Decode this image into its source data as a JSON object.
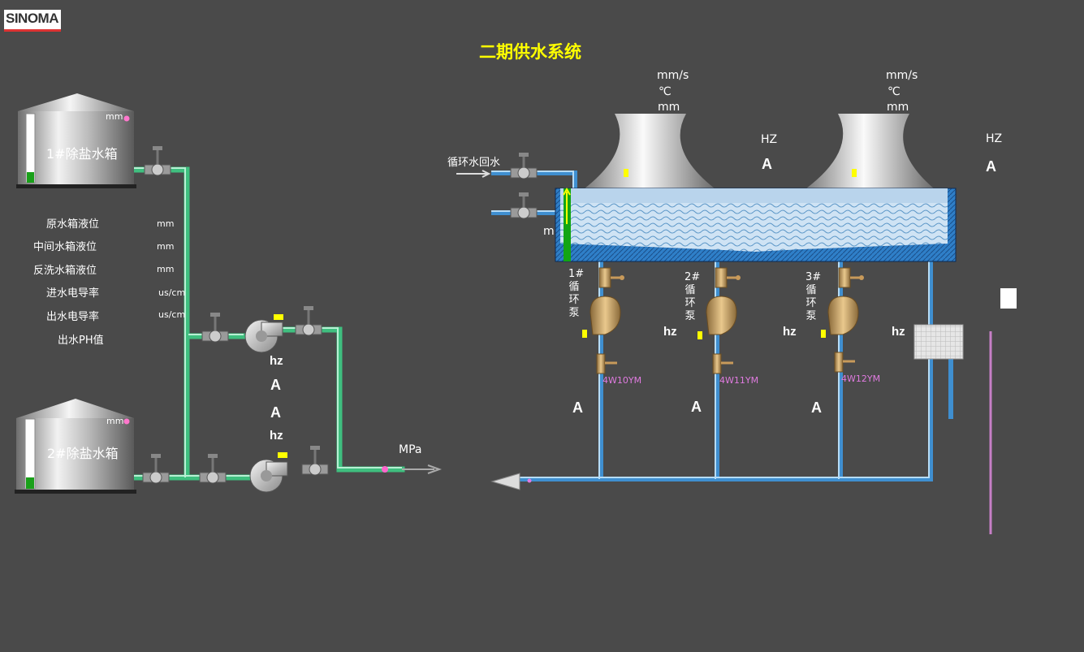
{
  "header": {
    "logo": "SINOMA",
    "title": "二期供水系统"
  },
  "tanks": [
    {
      "name": "1#除盐水箱",
      "level_unit": "mm"
    },
    {
      "name": "2#除盐水箱",
      "level_unit": "mm"
    }
  ],
  "readings": [
    {
      "label": "原水箱液位",
      "unit": "mm"
    },
    {
      "label": "中间水箱液位",
      "unit": "mm"
    },
    {
      "label": "反洗水箱液位",
      "unit": "mm"
    },
    {
      "label": "进水电导率",
      "unit": "us/cm"
    },
    {
      "label": "出水电导率",
      "unit": "us/cm"
    },
    {
      "label": "出水PH值",
      "unit": ""
    }
  ],
  "supply_pumps": {
    "upper": {
      "freq_unit": "hz",
      "current_unit": "A"
    },
    "lower": {
      "freq_unit": "hz",
      "current_unit": "A"
    },
    "outlet_pressure_unit": "MPa"
  },
  "cooling_towers": [
    {
      "vibration_unit": "mm/s",
      "temp_unit": "℃",
      "level_unit": "mm",
      "freq_unit": "HZ",
      "current_unit": "A"
    },
    {
      "vibration_unit": "mm/s",
      "temp_unit": "℃",
      "level_unit": "mm",
      "freq_unit": "HZ",
      "current_unit": "A"
    }
  ],
  "return_water_label": "循环水回水",
  "basin_level_unit": "m",
  "circ_pumps": [
    {
      "name": "1#循环泵",
      "tag": "4W10YM",
      "current_unit": "A"
    },
    {
      "name": "2#循环泵",
      "tag": "4W11YM",
      "freq_unit": "hz",
      "current_unit": "A"
    },
    {
      "name": "3#循环泵",
      "tag": "4W12YM",
      "freq_unit": "hz",
      "current_unit": "A"
    }
  ],
  "filter": {
    "freq_unit": "hz"
  },
  "colors": {
    "background": "#4a4a4a",
    "title": "#ffff00",
    "green_pipe": "#3fbf7f",
    "blue_pipe": "#3f8fd0",
    "tag": "#e07be0",
    "indicator": "#ffff00"
  }
}
